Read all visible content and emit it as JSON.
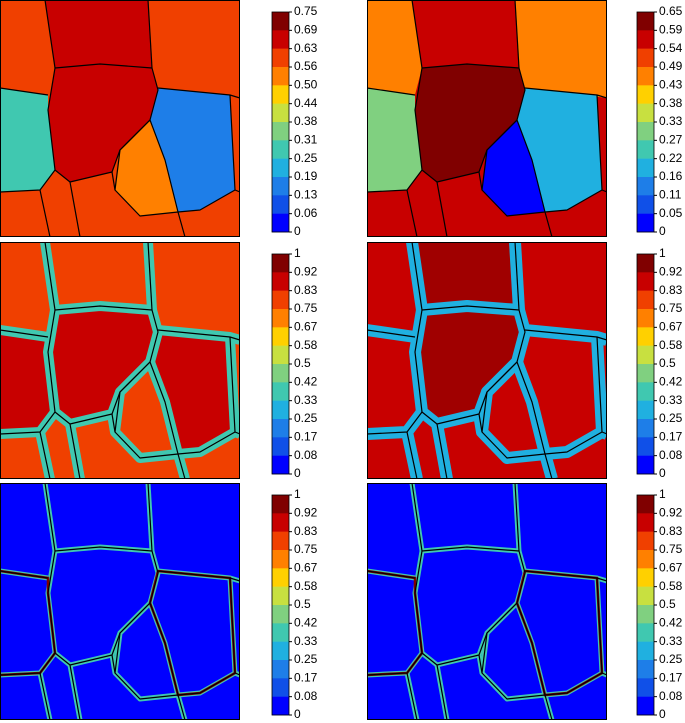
{
  "panels": [
    {
      "colorbar": [
        "0.75",
        "0.69",
        "0.63",
        "0.56",
        "0.50",
        "0.44",
        "0.38",
        "0.31",
        "0.25",
        "0.19",
        "0.13",
        "0.06",
        "0"
      ]
    },
    {
      "colorbar": [
        "0.65",
        "0.59",
        "0.54",
        "0.49",
        "0.43",
        "0.38",
        "0.33",
        "0.27",
        "0.22",
        "0.16",
        "0.11",
        "0.05",
        "0"
      ]
    },
    {
      "colorbar": [
        "1",
        "0.92",
        "0.83",
        "0.75",
        "0.67",
        "0.58",
        "0.5",
        "0.42",
        "0.33",
        "0.25",
        "0.17",
        "0.08",
        "0"
      ]
    },
    {
      "colorbar": [
        "1",
        "0.92",
        "0.83",
        "0.75",
        "0.67",
        "0.58",
        "0.5",
        "0.42",
        "0.33",
        "0.25",
        "0.17",
        "0.08",
        "0"
      ]
    },
    {
      "colorbar": [
        "1",
        "0.92",
        "0.83",
        "0.75",
        "0.67",
        "0.58",
        "0.5",
        "0.42",
        "0.33",
        "0.25",
        "0.17",
        "0.08",
        "0"
      ]
    },
    {
      "colorbar": [
        "1",
        "0.92",
        "0.83",
        "0.75",
        "0.67",
        "0.58",
        "0.5",
        "0.42",
        "0.33",
        "0.25",
        "0.17",
        "0.08",
        "0"
      ]
    }
  ]
}
